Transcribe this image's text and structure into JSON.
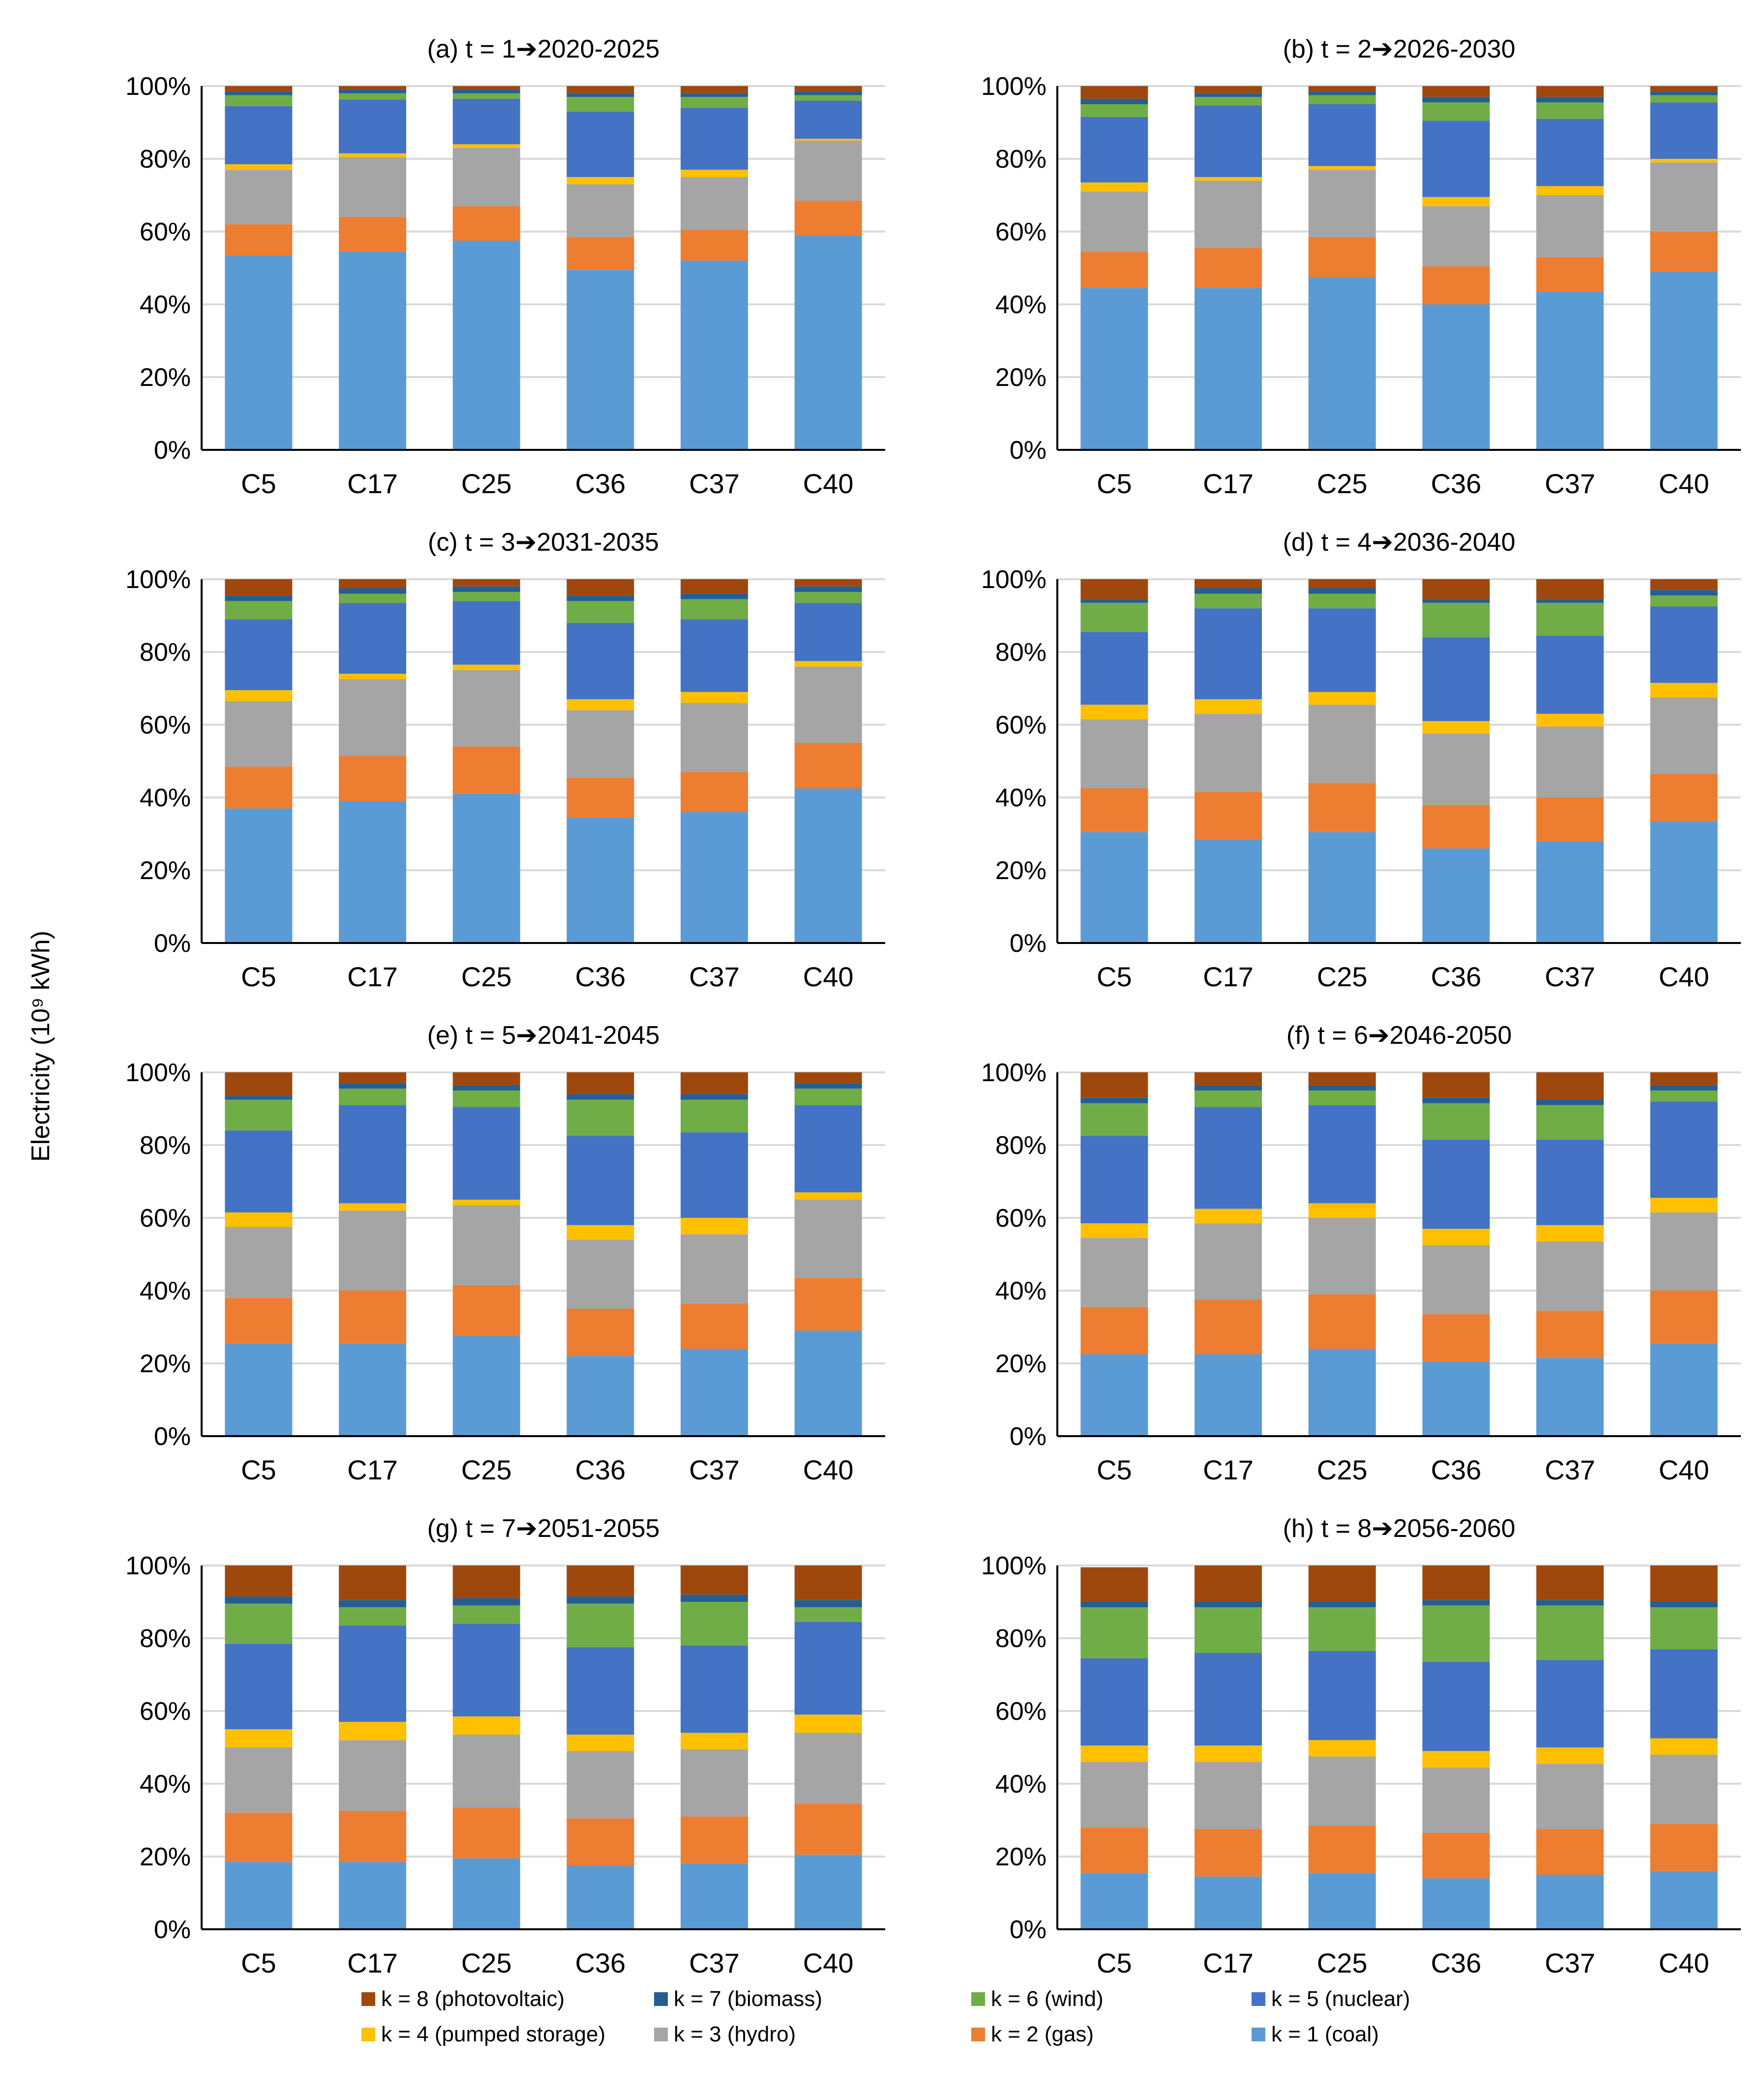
{
  "figure": {
    "ylabel": "Electricity (10⁹ kWh)"
  },
  "chart_data": {
    "type": "bar",
    "stacked": true,
    "normalized": true,
    "ylabel": "Electricity (10⁹ kWh)",
    "ylim": [
      0,
      100
    ],
    "yticks": [
      "0%",
      "20%",
      "40%",
      "60%",
      "80%",
      "100%"
    ],
    "grid": true,
    "legend_position": "bottom",
    "categories": [
      "C5",
      "C17",
      "C25",
      "C36",
      "C37",
      "C40"
    ],
    "series": [
      {
        "key": "k1",
        "name": "k = 1 (coal)",
        "color": "#5B9BD5"
      },
      {
        "key": "k2",
        "name": "k = 2 (gas)",
        "color": "#ED7D31"
      },
      {
        "key": "k3",
        "name": "k = 3 (hydro)",
        "color": "#A5A5A5"
      },
      {
        "key": "k4",
        "name": "k = 4 (pumped storage)",
        "color": "#FFC000"
      },
      {
        "key": "k5",
        "name": "k = 5 (nuclear)",
        "color": "#4472C4"
      },
      {
        "key": "k6",
        "name": "k = 6 (wind)",
        "color": "#70AD47"
      },
      {
        "key": "k7",
        "name": "k = 7 (biomass)",
        "color": "#255E91"
      },
      {
        "key": "k8",
        "name": "k = 8 (photovoltaic)",
        "color": "#9E480E"
      }
    ],
    "legend_order": [
      "k8",
      "k7",
      "k6",
      "k5",
      "k4",
      "k3",
      "k2",
      "k1"
    ],
    "panels": [
      {
        "id": "a",
        "title": "(a)   t = 1➔2020-2025",
        "values": [
          [
            53.5,
            8.5,
            15,
            1.5,
            16,
            3,
            1,
            1.5
          ],
          [
            54.5,
            9.5,
            16.5,
            1,
            14.8,
            1.7,
            1,
            1
          ],
          [
            57.5,
            9.5,
            16,
            1,
            12.5,
            1.5,
            1,
            1
          ],
          [
            49.5,
            9,
            14.5,
            2,
            18,
            4,
            1,
            2
          ],
          [
            52,
            8.5,
            14.5,
            2,
            17,
            3,
            1,
            2
          ],
          [
            59,
            9.5,
            16.5,
            0.5,
            10.5,
            1.5,
            1,
            1.5
          ]
        ]
      },
      {
        "id": "b",
        "title": "(b)   t = 2➔2026-2030",
        "values": [
          [
            44.5,
            10,
            16.5,
            2.5,
            18,
            3.5,
            1.5,
            3.5
          ],
          [
            44.5,
            11,
            18.5,
            1,
            19.7,
            2.3,
            1,
            2
          ],
          [
            47.5,
            11,
            18.5,
            1,
            17,
            2.5,
            1,
            1.5
          ],
          [
            40,
            10.5,
            16.5,
            2.5,
            21,
            5,
            1.5,
            3
          ],
          [
            43.5,
            9.5,
            17,
            2.5,
            18.5,
            4.5,
            1.5,
            3
          ],
          [
            49,
            11,
            19,
            1,
            15.5,
            2,
            1,
            1.5
          ]
        ]
      },
      {
        "id": "c",
        "title": "(c)   t = 3➔2031-2035",
        "values": [
          [
            37,
            11.5,
            18,
            3,
            19.5,
            5,
            1.5,
            4.5
          ],
          [
            39,
            12.5,
            21,
            1.5,
            19.5,
            2.5,
            1.5,
            2.5
          ],
          [
            41,
            13,
            21,
            1.5,
            17.5,
            2.5,
            1.5,
            2
          ],
          [
            34.5,
            11,
            18.5,
            3,
            21,
            6,
            1.5,
            4.5
          ],
          [
            36,
            11,
            19,
            3,
            20,
            5.5,
            1.5,
            4
          ],
          [
            42.5,
            12.5,
            21,
            1.5,
            16,
            3,
            1.5,
            2
          ]
        ]
      },
      {
        "id": "d",
        "title": "(d)   t = 4➔2036-2040",
        "values": [
          [
            30.5,
            12,
            19,
            4,
            20,
            8,
            1,
            5.5
          ],
          [
            28.5,
            13,
            21.5,
            4,
            25,
            4,
            1.5,
            2.5
          ],
          [
            30.5,
            13.5,
            21.5,
            3.5,
            23,
            4,
            1.5,
            2.5
          ],
          [
            26,
            12,
            19.5,
            3.5,
            23,
            9.5,
            1,
            5.5
          ],
          [
            28,
            12,
            19.5,
            3.5,
            21.5,
            9,
            1,
            5.5
          ],
          [
            33.5,
            13,
            21,
            4,
            21,
            3,
            1.5,
            3
          ]
        ]
      },
      {
        "id": "e",
        "title": "(e)   t = 5➔2041-2045",
        "values": [
          [
            25.5,
            12.5,
            19.5,
            4,
            22.5,
            8.5,
            1,
            6.5
          ],
          [
            25.5,
            14.5,
            22,
            2,
            27,
            4.5,
            1.5,
            3
          ],
          [
            27.5,
            14,
            22,
            1.5,
            25.5,
            4.5,
            1.5,
            3.5
          ],
          [
            22,
            13,
            19,
            4,
            24.5,
            10,
            1.5,
            6
          ],
          [
            24,
            12.5,
            19,
            4.5,
            23.5,
            9,
            1.5,
            6
          ],
          [
            29,
            14.5,
            21.5,
            2,
            24,
            4.5,
            1.5,
            3
          ]
        ]
      },
      {
        "id": "f",
        "title": "(f)   t = 6➔2046-2050",
        "values": [
          [
            22.5,
            13,
            19,
            4,
            24,
            9,
            1.5,
            7
          ],
          [
            22.5,
            15,
            21,
            4,
            28,
            4.5,
            1.5,
            3.5
          ],
          [
            24,
            15,
            21,
            4,
            27,
            4,
            1.5,
            3.5
          ],
          [
            20.5,
            13,
            19,
            4.5,
            24.5,
            10,
            1.5,
            7
          ],
          [
            21.5,
            13,
            19,
            4.5,
            23.5,
            9.5,
            1.5,
            7.5
          ],
          [
            25.5,
            14.5,
            21.5,
            4,
            26.5,
            3,
            1.5,
            3.5
          ]
        ]
      },
      {
        "id": "g",
        "title": "(g)   t = 7➔2051-2055",
        "values": [
          [
            18.5,
            13.5,
            18,
            5,
            23.5,
            11,
            2,
            8.5
          ],
          [
            18.5,
            14,
            19.5,
            5,
            26.5,
            5,
            2,
            9.5
          ],
          [
            19.5,
            14,
            20,
            5,
            25.5,
            5,
            2,
            9
          ],
          [
            17.5,
            13,
            18.5,
            4.5,
            24,
            12,
            2,
            8.5
          ],
          [
            18,
            13,
            18.5,
            4.5,
            24,
            12,
            2,
            8
          ],
          [
            20.5,
            14,
            19.5,
            5,
            25.5,
            4,
            2,
            9.5
          ]
        ]
      },
      {
        "id": "h",
        "title": "(h)   t = 8➔2056-2060",
        "values": [
          [
            15.5,
            12.5,
            18,
            4.5,
            24,
            14,
            1.5,
            9.5
          ],
          [
            14.5,
            13,
            18.5,
            4.5,
            25.5,
            12.5,
            1.5,
            10
          ],
          [
            15.5,
            13,
            19,
            4.5,
            24.5,
            12,
            1.5,
            10
          ],
          [
            14,
            12.5,
            18,
            4.5,
            24.5,
            15.5,
            1.5,
            9.5
          ],
          [
            15,
            12.5,
            18,
            4.5,
            24,
            15,
            1.5,
            9.5
          ],
          [
            16,
            13,
            19,
            4.5,
            24.5,
            11.5,
            1.5,
            10
          ]
        ]
      }
    ]
  }
}
